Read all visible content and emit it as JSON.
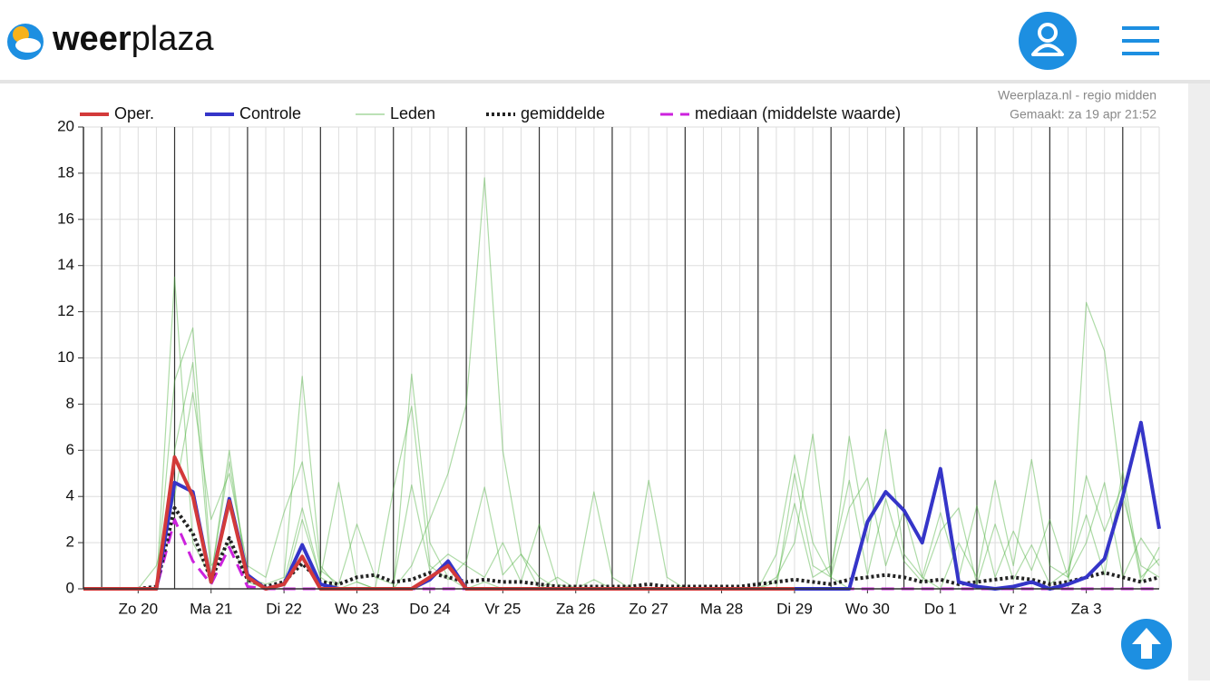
{
  "header": {
    "logo_bold": "weer",
    "logo_light": "plaza"
  },
  "chart_data": {
    "type": "line",
    "source": "Weerplaza.nl - regio midden",
    "made": "Gemaakt: za 19 apr 21:52",
    "x": [
      0,
      6,
      12,
      18,
      24,
      30,
      36,
      42,
      48,
      54,
      60,
      66,
      72,
      78,
      84,
      90,
      96,
      102,
      108,
      114,
      120,
      126,
      132,
      138,
      144,
      150,
      156,
      162,
      168,
      174,
      180,
      186,
      192,
      198,
      204,
      210,
      216,
      222,
      228,
      234,
      240,
      246,
      252,
      258,
      264,
      270,
      276,
      282,
      288,
      294,
      300,
      306,
      312,
      318,
      324,
      330,
      336,
      342,
      348,
      354
    ],
    "xlim": [
      0,
      354
    ],
    "xticks": [
      {
        "value": 18,
        "label": "Zo 20"
      },
      {
        "value": 42,
        "label": "Ma 21"
      },
      {
        "value": 66,
        "label": "Di 22"
      },
      {
        "value": 90,
        "label": "Wo 23"
      },
      {
        "value": 114,
        "label": "Do 24"
      },
      {
        "value": 138,
        "label": "Vr 25"
      },
      {
        "value": 162,
        "label": "Za 26"
      },
      {
        "value": 186,
        "label": "Zo 27"
      },
      {
        "value": 210,
        "label": "Ma 28"
      },
      {
        "value": 234,
        "label": "Di 29"
      },
      {
        "value": 258,
        "label": "Wo 30"
      },
      {
        "value": 282,
        "label": "Do 1"
      },
      {
        "value": 306,
        "label": "Vr 2"
      },
      {
        "value": 330,
        "label": "Za 3"
      }
    ],
    "xgrid_major": [
      6,
      30,
      54,
      78,
      102,
      126,
      150,
      174,
      198,
      222,
      246,
      270,
      294,
      318,
      342
    ],
    "xgrid_minor_step": 6,
    "ylim": [
      0,
      20
    ],
    "yticks": [
      0,
      2,
      4,
      6,
      8,
      10,
      12,
      14,
      16,
      18,
      20
    ],
    "grid": true,
    "series": [
      {
        "name": "Oper.",
        "color": "#d33a3a",
        "style": "solid",
        "width": 4,
        "values": [
          0,
          0,
          0,
          0,
          0,
          5.7,
          4.0,
          0.3,
          3.8,
          0.5,
          0,
          0.2,
          1.4,
          0,
          0,
          0,
          0,
          0,
          0,
          0.5,
          1.0,
          0,
          0,
          0,
          0,
          0,
          0,
          0,
          0,
          0,
          0,
          0,
          0,
          0,
          0,
          0,
          0,
          0,
          0,
          0,
          null,
          null,
          null,
          null,
          null,
          null,
          null,
          null,
          null,
          null,
          null,
          null,
          null,
          null,
          null,
          null,
          null,
          null,
          null,
          null
        ]
      },
      {
        "name": "Controle",
        "color": "#3535c8",
        "style": "solid",
        "width": 4,
        "values": [
          0,
          0,
          0,
          0,
          0,
          4.6,
          4.2,
          0.3,
          3.9,
          0.6,
          0,
          0.2,
          1.9,
          0.2,
          0,
          0,
          0,
          0,
          0,
          0.4,
          1.2,
          0,
          0,
          0,
          0,
          0,
          0,
          0,
          0,
          0,
          0,
          0,
          0,
          0,
          0,
          0,
          0,
          0,
          0,
          0,
          0,
          0,
          0,
          2.9,
          4.2,
          3.4,
          2.0,
          5.2,
          0.3,
          0.1,
          0,
          0.1,
          0.3,
          0,
          0.2,
          0.5,
          1.3,
          4.0,
          7.2,
          2.6
        ]
      },
      {
        "name": "Leden",
        "color": "#4caf3c",
        "style": "thin",
        "width": 1.2,
        "values": [
          [
            0,
            0,
            0,
            0,
            0,
            13.5,
            2.0,
            0.5,
            6.0,
            0.3,
            0,
            0,
            3.0,
            0.5,
            0,
            0,
            0,
            0,
            9.3,
            2.0,
            0.5,
            0,
            0.3,
            0,
            0,
            0,
            0,
            0,
            0,
            0,
            0,
            0,
            0,
            0,
            0,
            0,
            0,
            0,
            0.5,
            2.0,
            6.7,
            0.5,
            0,
            0,
            0,
            0,
            0,
            0,
            0,
            0,
            0,
            0,
            0,
            0,
            0,
            12.4,
            10.3,
            4.0,
            1.0,
            0.5
          ],
          [
            0,
            0,
            0,
            0,
            0,
            9.0,
            11.3,
            1.0,
            2.0,
            0.5,
            0.2,
            0.5,
            9.2,
            1.0,
            0,
            0.3,
            0,
            0,
            1.0,
            3.0,
            5.0,
            8.0,
            17.8,
            6.0,
            1.5,
            0.5,
            0,
            0,
            4.2,
            0.5,
            0,
            4.7,
            0.5,
            0,
            0,
            0,
            0,
            0,
            0,
            5.0,
            1.0,
            0.5,
            6.6,
            2.0,
            6.9,
            1.5,
            0.5,
            0,
            2.0,
            0.5,
            4.7,
            1.0,
            5.6,
            1.0,
            0.5,
            2.0,
            4.6,
            0.5,
            2.2,
            1.0
          ],
          [
            0,
            0,
            0,
            0,
            0,
            6.0,
            9.8,
            0.5,
            5.5,
            0.5,
            0,
            0.3,
            3.5,
            0.5,
            4.6,
            0.3,
            0,
            4.3,
            7.9,
            1.0,
            0.4,
            1.2,
            4.4,
            0.6,
            1.5,
            0,
            0.5,
            0,
            0.4,
            0,
            0,
            0,
            0,
            0,
            0,
            0,
            0,
            0,
            1.5,
            5.8,
            2.0,
            0.5,
            3.5,
            4.8,
            1.0,
            3.4,
            0.5,
            3.3,
            0.5,
            3.6,
            0.5,
            2.5,
            0.8,
            3.0,
            0.5,
            4.9,
            2.5,
            4.5,
            0.3,
            1.8
          ],
          [
            0,
            0,
            0,
            0,
            1.0,
            4.0,
            8.5,
            3.0,
            5.0,
            1.0,
            0.5,
            3.3,
            5.5,
            0.8,
            0.2,
            2.8,
            0.5,
            0.2,
            4.5,
            0.8,
            1.5,
            1.0,
            0.5,
            2.0,
            0.3,
            2.8,
            0.2,
            0,
            0,
            0,
            0,
            0,
            0,
            0,
            0,
            0,
            0,
            0,
            0.3,
            3.7,
            0.5,
            1.0,
            4.7,
            0.6,
            3.9,
            1.2,
            0.3,
            2.5,
            3.5,
            0.2,
            2.8,
            0.4,
            1.9,
            0.2,
            0.8,
            3.2,
            0.6,
            5.1,
            0.5,
            1.3
          ]
        ]
      },
      {
        "name": "gemiddelde",
        "color": "#222222",
        "style": "dotted",
        "width": 4,
        "values": [
          0,
          0,
          0,
          0,
          0.1,
          3.5,
          2.4,
          0.4,
          2.2,
          0.4,
          0.1,
          0.3,
          1.1,
          0.3,
          0.2,
          0.5,
          0.6,
          0.3,
          0.4,
          0.7,
          0.5,
          0.3,
          0.4,
          0.3,
          0.3,
          0.2,
          0.1,
          0.1,
          0.1,
          0.1,
          0.1,
          0.2,
          0.1,
          0.1,
          0.1,
          0.1,
          0.1,
          0.2,
          0.3,
          0.4,
          0.3,
          0.2,
          0.4,
          0.5,
          0.6,
          0.5,
          0.3,
          0.4,
          0.2,
          0.3,
          0.4,
          0.5,
          0.4,
          0.2,
          0.3,
          0.5,
          0.7,
          0.5,
          0.3,
          0.5
        ]
      },
      {
        "name": "mediaan (middelste waarde)",
        "color": "#cc22dd",
        "style": "dashed",
        "width": 3,
        "values": [
          0,
          0,
          0,
          0,
          0,
          3.0,
          1.2,
          0.2,
          1.8,
          0.1,
          0,
          0,
          0,
          0,
          0,
          0,
          0,
          0,
          0,
          0,
          0,
          0,
          0,
          0,
          0,
          0,
          0,
          0,
          0,
          0,
          0,
          0,
          0,
          0,
          0,
          0,
          0,
          0,
          0,
          0,
          0,
          0,
          0,
          0,
          0,
          0,
          0,
          0,
          0,
          0,
          0,
          0,
          0,
          0,
          0,
          0,
          0,
          0,
          0,
          0
        ]
      }
    ]
  }
}
